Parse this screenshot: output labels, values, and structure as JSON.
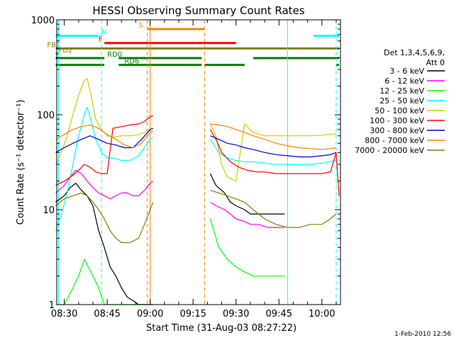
{
  "chart_data": {
    "type": "line",
    "title": "HESSI Observing Summary Count Rates",
    "xlabel": "Start Time (31-Aug-03 08:27:22)",
    "ylabel": "Count Rate (s⁻¹ detector⁻¹)",
    "y_scale": "log",
    "ylim": [
      1,
      1000
    ],
    "xlim": [
      "08:27:22",
      "10:06:30"
    ],
    "x_ticks": [
      "08:30",
      "08:45",
      "09:00",
      "09:15",
      "09:30",
      "09:45",
      "10:00"
    ],
    "y_ticks": [
      "1",
      "10",
      "100",
      "1000"
    ],
    "footer": "1-Feb-2010 12:56",
    "grid": false,
    "legend_position": "right",
    "legend_title": [
      "Det 1,3,4,5,6,9,",
      "Att 0"
    ],
    "series": [
      {
        "name": "3 - 6 keV",
        "color": "#000000",
        "x": [
          "08:27",
          "08:30",
          "08:32",
          "08:34",
          "08:36",
          "08:38",
          "08:40",
          "08:42",
          "08:44",
          "08:46",
          "08:48",
          "08:50",
          "08:52",
          "08:54",
          "08:56",
          "08:58",
          "09:00",
          "09:01",
          "09:21",
          "09:23",
          "09:26",
          "09:28",
          "09:30",
          "09:33",
          "09:35",
          "09:38",
          "09:41",
          "09:45",
          "09:47"
        ],
        "y": [
          12,
          14,
          17,
          19,
          16,
          14,
          11,
          6,
          4,
          2.5,
          2,
          1.5,
          1.2,
          1.1,
          1,
          1,
          1,
          1,
          24,
          18,
          15,
          12,
          11,
          10,
          9,
          9,
          9,
          9,
          9
        ]
      },
      {
        "name": "6 - 12 keV",
        "color": "#ff00ff",
        "x": [
          "08:27",
          "08:30",
          "08:32",
          "08:34",
          "08:36",
          "08:38",
          "08:40",
          "08:42",
          "08:44",
          "08:46",
          "08:48",
          "08:50",
          "08:52",
          "08:54",
          "08:56",
          "08:58",
          "09:00",
          "09:01",
          "09:21",
          "09:23",
          "09:26",
          "09:28",
          "09:30",
          "09:33",
          "09:35",
          "09:38",
          "09:41",
          "09:45",
          "09:47"
        ],
        "y": [
          15,
          18,
          22,
          26,
          24,
          20,
          17,
          15,
          14,
          13,
          14,
          15,
          15,
          14,
          14,
          16,
          19,
          20,
          12,
          11,
          10,
          9,
          8,
          7.5,
          7,
          7,
          6.5,
          6.5,
          6.5
        ]
      },
      {
        "name": "12 - 25 keV",
        "color": "#00ff00",
        "x": [
          "08:27",
          "08:30",
          "08:33",
          "08:35",
          "08:37",
          "08:40",
          "08:42",
          "08:44",
          "08:46",
          "08:49",
          "08:52",
          "08:55",
          "08:57",
          "09:00",
          "09:21",
          "09:24",
          "09:27",
          "09:30",
          "09:33",
          "09:36",
          "09:39",
          "09:42",
          "09:45",
          "09:47"
        ],
        "y": [
          1,
          1,
          1.5,
          2,
          3,
          2,
          1.5,
          1,
          1,
          1,
          1,
          1,
          1,
          1,
          8,
          4,
          3,
          2.5,
          2.2,
          2,
          2,
          2,
          2,
          2
        ]
      },
      {
        "name": "25 - 50 keV",
        "color": "#00ffff",
        "x": [
          "08:27",
          "08:29",
          "08:31",
          "08:33",
          "08:35",
          "08:37",
          "08:38",
          "08:39",
          "08:41",
          "08:43",
          "08:45",
          "08:47",
          "08:50",
          "08:53",
          "08:56",
          "08:58",
          "09:00",
          "09:01",
          "09:21",
          "09:24",
          "09:27",
          "09:30",
          "09:33",
          "09:36",
          "09:40",
          "09:44",
          "09:48",
          "09:52",
          "09:56",
          "10:00",
          "10:03",
          "10:05"
        ],
        "y": [
          6,
          9,
          15,
          30,
          60,
          100,
          120,
          95,
          55,
          40,
          35,
          35,
          33,
          33,
          37,
          45,
          55,
          58,
          55,
          40,
          35,
          33,
          32,
          32,
          31,
          30,
          30,
          30,
          30,
          31,
          32,
          33
        ]
      },
      {
        "name": "50 - 100 keV",
        "color": "#cccc00",
        "x": [
          "08:27",
          "08:29",
          "08:31",
          "08:33",
          "08:35",
          "08:37",
          "08:38",
          "08:39",
          "08:41",
          "08:43",
          "08:45",
          "08:47",
          "08:50",
          "08:53",
          "08:56",
          "08:58",
          "09:00",
          "09:01",
          "09:21",
          "09:23",
          "09:25",
          "09:27",
          "09:30",
          "09:33",
          "09:36",
          "09:40",
          "09:44",
          "09:48",
          "09:52",
          "09:56",
          "10:00",
          "10:03",
          "10:05"
        ],
        "y": [
          30,
          40,
          60,
          100,
          160,
          230,
          240,
          180,
          90,
          70,
          60,
          58,
          60,
          60,
          62,
          65,
          70,
          72,
          80,
          60,
          30,
          22,
          20,
          80,
          65,
          60,
          60,
          60,
          60,
          60,
          61,
          62,
          63
        ]
      },
      {
        "name": "100 - 300 keV",
        "color": "#ff0000",
        "x": [
          "08:27",
          "08:30",
          "08:33",
          "08:35",
          "08:37",
          "08:39",
          "08:41",
          "08:43",
          "08:45",
          "08:47",
          "08:50",
          "08:53",
          "08:56",
          "08:58",
          "09:00",
          "09:01",
          "09:21",
          "09:23",
          "09:25",
          "09:28",
          "09:31",
          "09:34",
          "09:37",
          "09:40",
          "09:44",
          "09:48",
          "09:52",
          "09:56",
          "10:00",
          "10:03",
          "10:05",
          "10:06"
        ],
        "y": [
          18,
          20,
          23,
          26,
          30,
          28,
          25,
          24,
          24,
          72,
          75,
          78,
          80,
          85,
          95,
          98,
          70,
          55,
          40,
          32,
          28,
          26,
          25,
          25,
          24,
          24,
          24,
          24,
          24,
          25,
          40,
          14
        ]
      },
      {
        "name": "300 - 800 keV",
        "color": "#0000cc",
        "x": [
          "08:27",
          "08:30",
          "08:33",
          "08:36",
          "08:39",
          "08:42",
          "08:45",
          "08:48",
          "08:51",
          "08:54",
          "08:57",
          "09:00",
          "09:01",
          "09:21",
          "09:24",
          "09:27",
          "09:30",
          "09:33",
          "09:36",
          "09:40",
          "09:44",
          "09:48",
          "09:52",
          "09:56",
          "10:00",
          "10:03",
          "10:05"
        ],
        "y": [
          40,
          45,
          50,
          55,
          60,
          55,
          50,
          48,
          45,
          45,
          55,
          70,
          72,
          60,
          55,
          50,
          48,
          45,
          43,
          40,
          38,
          37,
          36,
          36,
          37,
          38,
          40
        ]
      },
      {
        "name": "800 - 7000 keV",
        "color": "#ff8000",
        "x": [
          "08:27",
          "08:30",
          "08:33",
          "08:36",
          "08:39",
          "08:42",
          "08:45",
          "08:48",
          "08:51",
          "08:54",
          "08:57",
          "09:00",
          "09:01",
          "09:21",
          "09:24",
          "09:27",
          "09:30",
          "09:33",
          "09:36",
          "09:40",
          "09:44",
          "09:48",
          "09:52",
          "09:56",
          "10:00",
          "10:03",
          "10:05"
        ],
        "y": [
          55,
          62,
          70,
          75,
          78,
          72,
          62,
          55,
          48,
          45,
          50,
          65,
          68,
          80,
          78,
          75,
          70,
          65,
          60,
          55,
          50,
          47,
          45,
          44,
          43,
          44,
          45
        ]
      },
      {
        "name": "7000 - 20000 keV",
        "color": "#808000",
        "x": [
          "08:27",
          "08:30",
          "08:33",
          "08:36",
          "08:38",
          "08:40",
          "08:42",
          "08:44",
          "08:46",
          "08:48",
          "08:50",
          "08:53",
          "08:56",
          "08:58",
          "09:00",
          "09:01",
          "09:21",
          "09:24",
          "09:27",
          "09:30",
          "09:33",
          "09:36",
          "09:40",
          "09:44",
          "09:48",
          "09:52",
          "09:56",
          "10:00",
          "10:03",
          "10:05"
        ],
        "y": [
          11,
          13,
          14,
          15,
          14,
          12,
          10,
          8,
          6,
          5,
          4.5,
          4.5,
          5,
          7,
          10,
          12,
          16,
          15,
          14,
          13,
          12,
          10,
          8,
          7,
          6.5,
          6.5,
          7,
          7,
          8,
          9
        ]
      }
    ],
    "flag_bars": [
      {
        "label": "N",
        "color": "#00ffff",
        "value": 680,
        "segments": [
          [
            "08:27",
            "08:42"
          ],
          [
            "09:57",
            "10:06"
          ]
        ],
        "label_at": "08:43"
      },
      {
        "label": "S",
        "color": "#ff8000",
        "value": 800,
        "segments": [
          [
            "08:59",
            "09:19"
          ]
        ],
        "label_at": "08:56"
      },
      {
        "label": "F",
        "color": "#ff0000",
        "value": 570,
        "segments": [
          [
            "08:44",
            "09:30"
          ]
        ],
        "label_at": "08:42"
      },
      {
        "label": "FB1",
        "color": "#808000",
        "value": 500,
        "segments": [
          [
            "08:27",
            "10:06"
          ]
        ],
        "label_at": "08:24"
      },
      {
        "label": "FD2",
        "color": "#808000",
        "value": 440,
        "segments": [
          [
            "08:27",
            "08:28"
          ]
        ],
        "label_at": "08:28"
      },
      {
        "label": "RD0",
        "color": "#008000",
        "value": 395,
        "segments": [
          [
            "08:27",
            "08:44"
          ],
          [
            "08:49",
            "09:18"
          ],
          [
            "09:36",
            "10:06"
          ]
        ],
        "label_at": "08:45"
      },
      {
        "label": "RD6",
        "color": "#008000",
        "value": 335,
        "segments": [
          [
            "08:27",
            "08:44"
          ],
          [
            "08:49",
            "09:18"
          ],
          [
            "09:19",
            "09:33"
          ],
          [
            "10:05",
            "10:06"
          ]
        ],
        "label_at": "08:51"
      }
    ],
    "vertical_lines": [
      {
        "x": "08:28",
        "color": "#00ffff",
        "style": "solid"
      },
      {
        "x": "08:43",
        "color": "#00ffff",
        "style": "dashed"
      },
      {
        "x": "08:59",
        "color": "#ff8000",
        "style": "dashed"
      },
      {
        "x": "09:00",
        "color": "#ff8000",
        "style": "solid"
      },
      {
        "x": "09:19",
        "color": "#ff8000",
        "style": "dashed"
      },
      {
        "x": "09:48",
        "color": "#00ffff",
        "style": "solid"
      },
      {
        "x": "10:05",
        "color": "#00ffff",
        "style": "dashed"
      }
    ]
  }
}
